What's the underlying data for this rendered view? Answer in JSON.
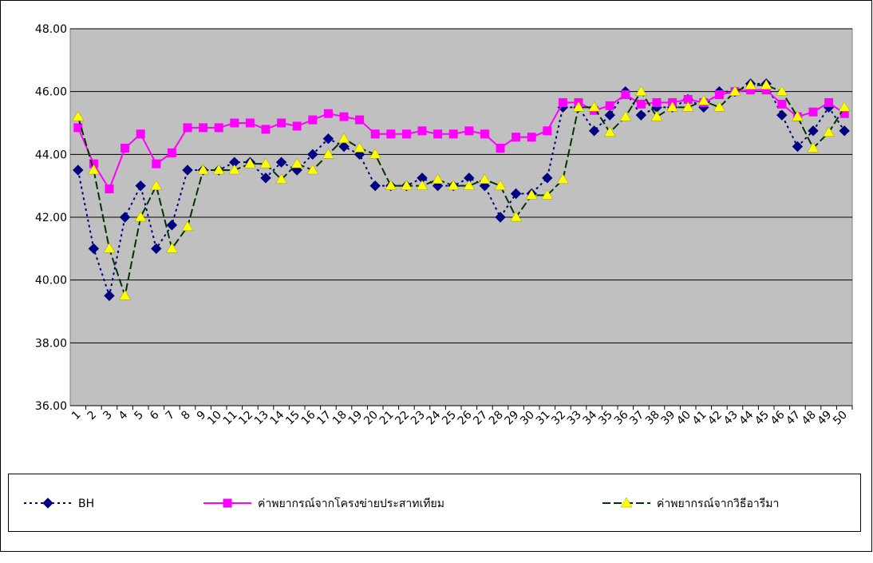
{
  "chart_data": {
    "type": "line",
    "categories": [
      "1",
      "2",
      "3",
      "4",
      "5",
      "6",
      "7",
      "8",
      "9",
      "10",
      "11",
      "12",
      "13",
      "14",
      "15",
      "16",
      "17",
      "18",
      "19",
      "20",
      "21",
      "22",
      "23",
      "24",
      "25",
      "26",
      "27",
      "28",
      "29",
      "30",
      "31",
      "32",
      "33",
      "34",
      "35",
      "36",
      "37",
      "38",
      "39",
      "40",
      "41",
      "42",
      "43",
      "44",
      "45",
      "46",
      "47",
      "48",
      "49",
      "50"
    ],
    "series": [
      {
        "name": "BH",
        "color": "#000080",
        "values": [
          43.5,
          41.0,
          39.5,
          42.0,
          43.0,
          41.0,
          41.75,
          43.5,
          43.5,
          43.5,
          43.75,
          43.75,
          43.25,
          43.75,
          43.5,
          44.0,
          44.5,
          44.25,
          44.0,
          43.0,
          43.0,
          43.0,
          43.25,
          43.0,
          43.0,
          43.25,
          43.0,
          42.0,
          42.75,
          42.75,
          43.25,
          45.5,
          45.5,
          44.75,
          45.25,
          46.0,
          45.25,
          45.5,
          45.5,
          45.75,
          45.5,
          46.0,
          46.0,
          46.25,
          46.25,
          45.25,
          44.25,
          44.75,
          45.5,
          44.75
        ]
      },
      {
        "name": "ค่าพยากรณ์จากโครงข่ายประสาทเทียม",
        "color": "#ff00ff",
        "values": [
          44.85,
          43.7,
          42.9,
          44.2,
          44.65,
          43.7,
          44.05,
          44.85,
          44.85,
          44.85,
          45.0,
          45.0,
          44.8,
          45.0,
          44.9,
          45.1,
          45.3,
          45.2,
          45.1,
          44.65,
          44.65,
          44.65,
          44.75,
          44.65,
          44.65,
          44.75,
          44.65,
          44.2,
          44.55,
          44.55,
          44.75,
          45.65,
          45.65,
          45.4,
          45.55,
          45.9,
          45.6,
          45.65,
          45.65,
          45.75,
          45.65,
          45.9,
          46.0,
          46.05,
          46.05,
          45.6,
          45.2,
          45.35,
          45.65,
          45.3
        ]
      },
      {
        "name": "ค่าพยากรณ์จากวิธีอารีมา",
        "color": "#ffff00",
        "line_color": "#003300",
        "values": [
          45.2,
          43.5,
          41.0,
          39.5,
          42.0,
          43.0,
          41.0,
          41.7,
          43.5,
          43.5,
          43.5,
          43.7,
          43.7,
          43.2,
          43.7,
          43.5,
          44.0,
          44.5,
          44.2,
          44.0,
          43.0,
          43.0,
          43.0,
          43.2,
          43.0,
          43.0,
          43.2,
          43.0,
          42.0,
          42.7,
          42.7,
          43.2,
          45.5,
          45.5,
          44.7,
          45.2,
          46.0,
          45.2,
          45.5,
          45.5,
          45.7,
          45.5,
          46.0,
          46.2,
          46.2,
          46.0,
          45.2,
          44.2,
          44.7,
          45.5
        ]
      }
    ],
    "ylim": [
      36,
      48
    ],
    "yticks": [
      {
        "value": 36,
        "label": "36.00"
      },
      {
        "value": 38,
        "label": "38.00"
      },
      {
        "value": 40,
        "label": "40.00"
      },
      {
        "value": 42,
        "label": "42.00"
      },
      {
        "value": 44,
        "label": "44.00"
      },
      {
        "value": 46,
        "label": "46.00"
      },
      {
        "value": 48,
        "label": "48.00"
      }
    ],
    "grid": true,
    "legend": "bottom"
  }
}
